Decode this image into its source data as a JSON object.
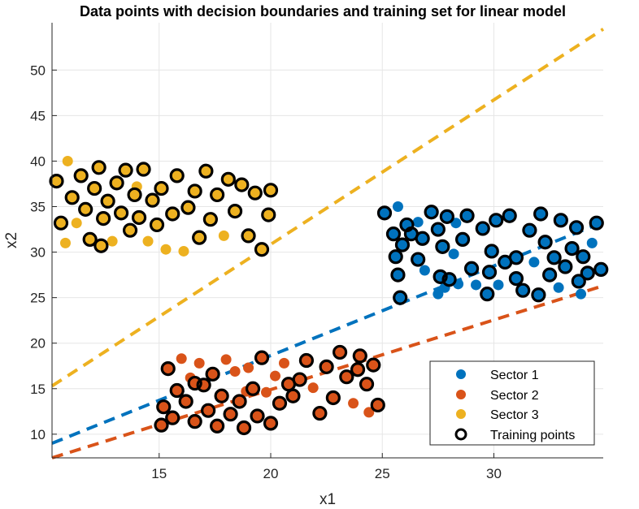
{
  "chart_data": {
    "type": "scatter",
    "title": "Data points with decision boundaries and training set for linear model",
    "xlabel": "x1",
    "ylabel": "x2",
    "xlim": [
      10.2,
      34.9
    ],
    "ylim": [
      7.4,
      55.2
    ],
    "xticks": [
      15,
      20,
      25,
      30
    ],
    "yticks": [
      10,
      15,
      20,
      25,
      30,
      35,
      40,
      45,
      50
    ],
    "grid": true,
    "legend": {
      "location": "bottom-right",
      "entries": [
        "Sector 1",
        "Sector 2",
        "Sector 3",
        "Training points"
      ]
    },
    "series": [
      {
        "name": "Sector 1",
        "color": "#0072BD",
        "points": [
          [
            25.1,
            34.3
          ],
          [
            25.5,
            32.0
          ],
          [
            25.6,
            29.5
          ],
          [
            25.7,
            27.5
          ],
          [
            25.8,
            25.0
          ],
          [
            25.7,
            35.0
          ],
          [
            25.9,
            30.8
          ],
          [
            26.1,
            33.0
          ],
          [
            26.3,
            32.0
          ],
          [
            26.6,
            33.3
          ],
          [
            26.8,
            31.5
          ],
          [
            26.9,
            28.0
          ],
          [
            27.2,
            34.4
          ],
          [
            27.5,
            25.4
          ],
          [
            27.5,
            32.5
          ],
          [
            27.6,
            27.3
          ],
          [
            27.7,
            30.6
          ],
          [
            27.8,
            26.1
          ],
          [
            27.9,
            33.9
          ],
          [
            28.0,
            27.0
          ],
          [
            28.2,
            29.8
          ],
          [
            28.4,
            26.5
          ],
          [
            28.6,
            31.4
          ],
          [
            28.8,
            34.0
          ],
          [
            29.0,
            28.2
          ],
          [
            29.2,
            26.4
          ],
          [
            29.5,
            32.6
          ],
          [
            29.7,
            25.4
          ],
          [
            29.9,
            30.1
          ],
          [
            30.1,
            33.5
          ],
          [
            30.2,
            26.4
          ],
          [
            30.5,
            28.9
          ],
          [
            30.7,
            34.0
          ],
          [
            31.0,
            27.1
          ],
          [
            31.3,
            25.8
          ],
          [
            31.6,
            32.4
          ],
          [
            31.8,
            28.9
          ],
          [
            32.0,
            25.3
          ],
          [
            32.1,
            34.2
          ],
          [
            32.3,
            31.1
          ],
          [
            32.5,
            27.5
          ],
          [
            32.7,
            29.4
          ],
          [
            32.9,
            26.1
          ],
          [
            33.0,
            33.5
          ],
          [
            33.2,
            28.4
          ],
          [
            33.5,
            30.4
          ],
          [
            33.7,
            32.7
          ],
          [
            33.9,
            25.4
          ],
          [
            34.0,
            29.5
          ],
          [
            34.2,
            27.7
          ],
          [
            34.4,
            31.0
          ],
          [
            34.6,
            33.2
          ],
          [
            34.8,
            28.1
          ],
          [
            29.8,
            27.8
          ],
          [
            31.0,
            29.4
          ],
          [
            33.8,
            26.8
          ],
          [
            26.6,
            29.2
          ],
          [
            28.3,
            33.2
          ]
        ]
      },
      {
        "name": "Sector 2",
        "color": "#D95319",
        "points": [
          [
            15.1,
            11.0
          ],
          [
            15.2,
            13.0
          ],
          [
            15.4,
            17.2
          ],
          [
            15.6,
            11.8
          ],
          [
            15.8,
            14.8
          ],
          [
            16.0,
            18.3
          ],
          [
            16.2,
            13.6
          ],
          [
            16.4,
            16.2
          ],
          [
            16.6,
            11.4
          ],
          [
            16.8,
            17.8
          ],
          [
            17.0,
            15.4
          ],
          [
            17.2,
            12.6
          ],
          [
            17.4,
            16.6
          ],
          [
            17.6,
            10.9
          ],
          [
            17.8,
            14.2
          ],
          [
            18.0,
            18.2
          ],
          [
            18.2,
            12.2
          ],
          [
            18.4,
            16.9
          ],
          [
            18.6,
            13.6
          ],
          [
            18.8,
            10.7
          ],
          [
            19.0,
            17.3
          ],
          [
            19.2,
            15.0
          ],
          [
            19.4,
            12.0
          ],
          [
            19.6,
            18.4
          ],
          [
            19.8,
            14.6
          ],
          [
            20.0,
            11.2
          ],
          [
            20.2,
            16.4
          ],
          [
            20.4,
            13.4
          ],
          [
            20.6,
            17.8
          ],
          [
            20.8,
            15.5
          ],
          [
            21.0,
            14.2
          ],
          [
            21.3,
            16.0
          ],
          [
            21.6,
            18.1
          ],
          [
            21.9,
            15.1
          ],
          [
            22.2,
            12.3
          ],
          [
            22.5,
            17.4
          ],
          [
            22.8,
            14.0
          ],
          [
            23.1,
            19.0
          ],
          [
            23.4,
            16.3
          ],
          [
            23.7,
            13.4
          ],
          [
            24.0,
            18.6
          ],
          [
            24.3,
            15.5
          ],
          [
            24.6,
            17.6
          ],
          [
            24.8,
            13.2
          ],
          [
            24.4,
            12.4
          ],
          [
            23.9,
            17.1
          ],
          [
            16.6,
            15.6
          ],
          [
            18.9,
            14.7
          ]
        ]
      },
      {
        "name": "Sector 3",
        "color": "#EDB120",
        "points": [
          [
            10.4,
            37.8
          ],
          [
            10.6,
            33.2
          ],
          [
            10.8,
            31.0
          ],
          [
            10.9,
            40.0
          ],
          [
            11.1,
            36.0
          ],
          [
            11.3,
            33.2
          ],
          [
            11.5,
            38.4
          ],
          [
            11.7,
            34.7
          ],
          [
            11.9,
            31.4
          ],
          [
            12.1,
            37.0
          ],
          [
            12.3,
            39.3
          ],
          [
            12.5,
            33.7
          ],
          [
            12.7,
            35.6
          ],
          [
            12.9,
            31.2
          ],
          [
            13.1,
            37.6
          ],
          [
            13.3,
            34.3
          ],
          [
            13.5,
            39.0
          ],
          [
            13.7,
            32.4
          ],
          [
            13.9,
            36.3
          ],
          [
            14.1,
            33.8
          ],
          [
            14.3,
            39.1
          ],
          [
            14.5,
            31.2
          ],
          [
            14.7,
            35.7
          ],
          [
            14.9,
            33.0
          ],
          [
            15.1,
            37.0
          ],
          [
            15.3,
            30.3
          ],
          [
            15.6,
            34.2
          ],
          [
            15.8,
            38.4
          ],
          [
            16.1,
            30.1
          ],
          [
            16.3,
            34.9
          ],
          [
            16.6,
            36.7
          ],
          [
            16.8,
            31.6
          ],
          [
            17.1,
            38.9
          ],
          [
            17.3,
            33.6
          ],
          [
            17.6,
            36.3
          ],
          [
            17.9,
            31.8
          ],
          [
            18.1,
            38.0
          ],
          [
            18.4,
            34.5
          ],
          [
            18.7,
            37.4
          ],
          [
            19.0,
            31.8
          ],
          [
            19.3,
            36.5
          ],
          [
            19.6,
            30.3
          ],
          [
            19.9,
            34.1
          ],
          [
            20.0,
            36.8
          ],
          [
            12.4,
            30.7
          ],
          [
            14.0,
            37.2
          ]
        ]
      },
      {
        "name": "Training points",
        "color": "#000000",
        "points": [
          [
            25.1,
            34.3
          ],
          [
            25.5,
            32.0
          ],
          [
            25.6,
            29.5
          ],
          [
            25.7,
            27.5
          ],
          [
            25.8,
            25.0
          ],
          [
            25.9,
            30.8
          ],
          [
            26.1,
            33.0
          ],
          [
            26.3,
            32.0
          ],
          [
            26.8,
            31.5
          ],
          [
            27.2,
            34.4
          ],
          [
            27.5,
            32.5
          ],
          [
            27.6,
            27.3
          ],
          [
            27.7,
            30.6
          ],
          [
            27.9,
            33.9
          ],
          [
            28.0,
            27.0
          ],
          [
            28.6,
            31.4
          ],
          [
            28.8,
            34.0
          ],
          [
            29.0,
            28.2
          ],
          [
            29.5,
            32.6
          ],
          [
            29.7,
            25.4
          ],
          [
            29.9,
            30.1
          ],
          [
            30.1,
            33.5
          ],
          [
            30.5,
            28.9
          ],
          [
            30.7,
            34.0
          ],
          [
            31.0,
            27.1
          ],
          [
            31.3,
            25.8
          ],
          [
            31.6,
            32.4
          ],
          [
            32.0,
            25.3
          ],
          [
            32.1,
            34.2
          ],
          [
            32.3,
            31.1
          ],
          [
            32.5,
            27.5
          ],
          [
            32.7,
            29.4
          ],
          [
            33.0,
            33.5
          ],
          [
            33.2,
            28.4
          ],
          [
            33.5,
            30.4
          ],
          [
            33.7,
            32.7
          ],
          [
            34.0,
            29.5
          ],
          [
            34.2,
            27.7
          ],
          [
            34.6,
            33.2
          ],
          [
            34.8,
            28.1
          ],
          [
            29.8,
            27.8
          ],
          [
            31.0,
            29.4
          ],
          [
            33.8,
            26.8
          ],
          [
            26.6,
            29.2
          ],
          [
            15.1,
            11.0
          ],
          [
            15.2,
            13.0
          ],
          [
            15.4,
            17.2
          ],
          [
            15.6,
            11.8
          ],
          [
            15.8,
            14.8
          ],
          [
            16.2,
            13.6
          ],
          [
            16.6,
            11.4
          ],
          [
            17.0,
            15.4
          ],
          [
            17.2,
            12.6
          ],
          [
            17.4,
            16.6
          ],
          [
            17.6,
            10.9
          ],
          [
            17.8,
            14.2
          ],
          [
            18.2,
            12.2
          ],
          [
            18.6,
            13.6
          ],
          [
            18.8,
            10.7
          ],
          [
            19.2,
            15.0
          ],
          [
            19.4,
            12.0
          ],
          [
            19.6,
            18.4
          ],
          [
            20.0,
            11.2
          ],
          [
            20.4,
            13.4
          ],
          [
            20.8,
            15.5
          ],
          [
            21.0,
            14.2
          ],
          [
            21.3,
            16.0
          ],
          [
            21.6,
            18.1
          ],
          [
            22.2,
            12.3
          ],
          [
            22.5,
            17.4
          ],
          [
            22.8,
            14.0
          ],
          [
            23.1,
            19.0
          ],
          [
            23.4,
            16.3
          ],
          [
            24.0,
            18.6
          ],
          [
            24.3,
            15.5
          ],
          [
            24.6,
            17.6
          ],
          [
            24.8,
            13.2
          ],
          [
            23.9,
            17.1
          ],
          [
            16.6,
            15.6
          ],
          [
            10.4,
            37.8
          ],
          [
            10.6,
            33.2
          ],
          [
            11.1,
            36.0
          ],
          [
            11.5,
            38.4
          ],
          [
            11.7,
            34.7
          ],
          [
            11.9,
            31.4
          ],
          [
            12.1,
            37.0
          ],
          [
            12.3,
            39.3
          ],
          [
            12.5,
            33.7
          ],
          [
            12.7,
            35.6
          ],
          [
            13.1,
            37.6
          ],
          [
            13.3,
            34.3
          ],
          [
            13.5,
            39.0
          ],
          [
            13.7,
            32.4
          ],
          [
            13.9,
            36.3
          ],
          [
            14.1,
            33.8
          ],
          [
            14.3,
            39.1
          ],
          [
            14.7,
            35.7
          ],
          [
            14.9,
            33.0
          ],
          [
            15.1,
            37.0
          ],
          [
            15.6,
            34.2
          ],
          [
            15.8,
            38.4
          ],
          [
            16.3,
            34.9
          ],
          [
            16.6,
            36.7
          ],
          [
            16.8,
            31.6
          ],
          [
            17.1,
            38.9
          ],
          [
            17.3,
            33.6
          ],
          [
            17.6,
            36.3
          ],
          [
            18.1,
            38.0
          ],
          [
            18.4,
            34.5
          ],
          [
            18.7,
            37.4
          ],
          [
            19.0,
            31.8
          ],
          [
            19.3,
            36.5
          ],
          [
            19.6,
            30.3
          ],
          [
            19.9,
            34.1
          ],
          [
            20.0,
            36.8
          ],
          [
            12.4,
            30.7
          ]
        ]
      }
    ],
    "boundaries": [
      {
        "color": "#0072BD",
        "x": [
          10.2,
          34.9
        ],
        "y": [
          9.0,
          33.3
        ]
      },
      {
        "color": "#D95319",
        "x": [
          10.2,
          34.9
        ],
        "y": [
          7.4,
          26.3
        ]
      },
      {
        "color": "#EDB120",
        "x": [
          10.2,
          34.9
        ],
        "y": [
          15.3,
          54.5
        ]
      }
    ]
  }
}
